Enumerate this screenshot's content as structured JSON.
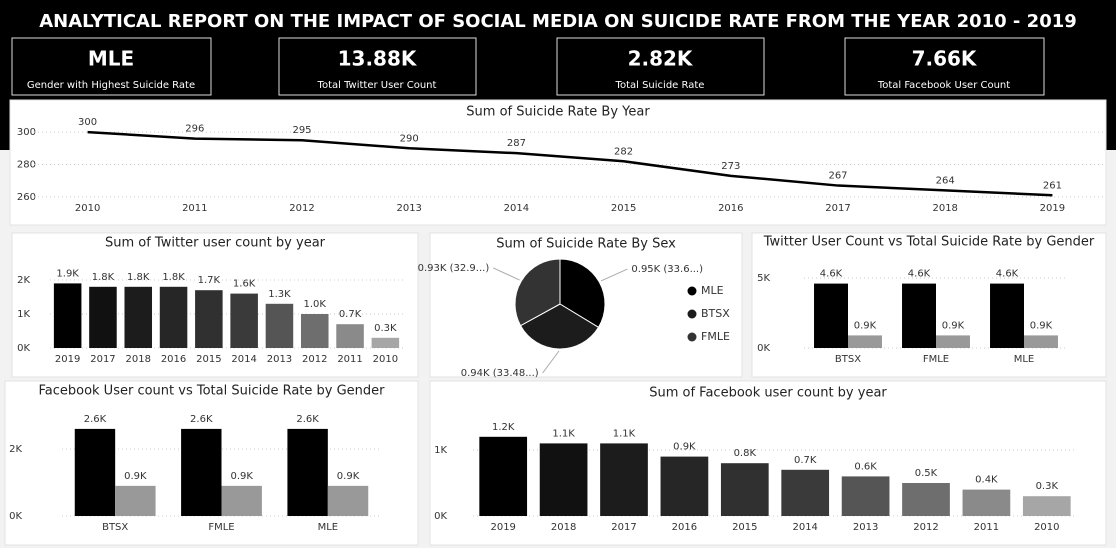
{
  "header": {
    "title": "ANALYTICAL REPORT ON THE IMPACT OF SOCIAL MEDIA ON SUICIDE RATE FROM THE YEAR 2010 - 2019"
  },
  "cards": [
    {
      "value": "MLE",
      "label": "Gender with Highest Suicide Rate"
    },
    {
      "value": "13.88K",
      "label": "Total Twitter User Count"
    },
    {
      "value": "2.82K",
      "label": "Total Suicide Rate"
    },
    {
      "value": "7.66K",
      "label": "Total Facebook User Count"
    }
  ],
  "chart_data": [
    {
      "type": "line",
      "title": "Sum of Suicide Rate By Year",
      "categories": [
        "2010",
        "2011",
        "2012",
        "2013",
        "2014",
        "2015",
        "2016",
        "2017",
        "2018",
        "2019"
      ],
      "values": [
        300,
        296,
        295,
        290,
        287,
        282,
        273,
        267,
        264,
        261
      ],
      "color": "#000000",
      "ylim": [
        255,
        305
      ],
      "yticks": [
        260,
        280,
        300
      ],
      "grid": true
    },
    {
      "type": "bar",
      "title": "Sum of Twitter user count by year",
      "categories": [
        "2019",
        "2017",
        "2018",
        "2016",
        "2015",
        "2014",
        "2013",
        "2012",
        "2011",
        "2010"
      ],
      "values": [
        1900,
        1800,
        1800,
        1800,
        1700,
        1600,
        1300,
        1000,
        700,
        300
      ],
      "value_labels": [
        "1.9K",
        "1.8K",
        "1.8K",
        "1.8K",
        "1.7K",
        "1.6K",
        "1.3K",
        "1.0K",
        "0.7K",
        "0.3K"
      ],
      "colors": [
        "#000000",
        "#111111",
        "#1c1c1c",
        "#262626",
        "#303030",
        "#3a3a3a",
        "#555555",
        "#6e6e6e",
        "#8a8a8a",
        "#a6a6a6"
      ],
      "ylim": [
        0,
        2400
      ],
      "yticks": [
        {
          "value": 0,
          "label": "0K"
        },
        {
          "value": 1000,
          "label": "1K"
        },
        {
          "value": 2000,
          "label": "2K"
        }
      ],
      "grid": true
    },
    {
      "type": "pie",
      "title": "Sum of Suicide Rate By Sex",
      "categories": [
        "MLE",
        "BTSX",
        "FMLE"
      ],
      "values": [
        950,
        940,
        930
      ],
      "value_labels": [
        "0.95K (33.6...)",
        "0.94K (33.48...)",
        "0.93K (32.9...)"
      ],
      "colors": [
        "#000000",
        "#1c1c1c",
        "#333333"
      ]
    },
    {
      "type": "bar",
      "title": "Twitter User Count vs Total Suicide Rate by Gender",
      "categories": [
        "BTSX",
        "FMLE",
        "MLE"
      ],
      "series": [
        {
          "color": "#000000",
          "values": [
            4600,
            4600,
            4600
          ],
          "value_labels": [
            "4.6K",
            "4.6K",
            "4.6K"
          ]
        },
        {
          "color": "#999999",
          "values": [
            900,
            900,
            900
          ],
          "value_labels": [
            "0.9K",
            "0.9K",
            "0.9K"
          ]
        }
      ],
      "ylim": [
        0,
        6000
      ],
      "yticks": [
        {
          "value": 0,
          "label": "0K"
        },
        {
          "value": 5000,
          "label": "5K"
        }
      ],
      "grid": true
    },
    {
      "type": "bar",
      "title": "Facebook User count vs Total Suicide Rate by Gender",
      "categories": [
        "BTSX",
        "FMLE",
        "MLE"
      ],
      "series": [
        {
          "color": "#000000",
          "values": [
            2600,
            2600,
            2600
          ],
          "value_labels": [
            "2.6K",
            "2.6K",
            "2.6K"
          ]
        },
        {
          "color": "#999999",
          "values": [
            900,
            900,
            900
          ],
          "value_labels": [
            "0.9K",
            "0.9K",
            "0.9K"
          ]
        }
      ],
      "ylim": [
        0,
        3200
      ],
      "yticks": [
        {
          "value": 0,
          "label": "0K"
        },
        {
          "value": 2000,
          "label": "2K"
        }
      ],
      "grid": true
    },
    {
      "type": "bar",
      "title": "Sum of Facebook user count by year",
      "categories": [
        "2019",
        "2018",
        "2017",
        "2016",
        "2015",
        "2014",
        "2013",
        "2012",
        "2011",
        "2010"
      ],
      "values": [
        1200,
        1100,
        1100,
        900,
        800,
        700,
        600,
        500,
        400,
        300
      ],
      "value_labels": [
        "1.2K",
        "1.1K",
        "1.1K",
        "0.9K",
        "0.8K",
        "0.7K",
        "0.6K",
        "0.5K",
        "0.4K",
        "0.3K"
      ],
      "colors": [
        "#000000",
        "#111111",
        "#1c1c1c",
        "#262626",
        "#303030",
        "#3a3a3a",
        "#555555",
        "#6e6e6e",
        "#8a8a8a",
        "#a6a6a6"
      ],
      "ylim": [
        0,
        1500
      ],
      "yticks": [
        {
          "value": 0,
          "label": "0K"
        },
        {
          "value": 1000,
          "label": "1K"
        }
      ],
      "grid": true
    }
  ]
}
